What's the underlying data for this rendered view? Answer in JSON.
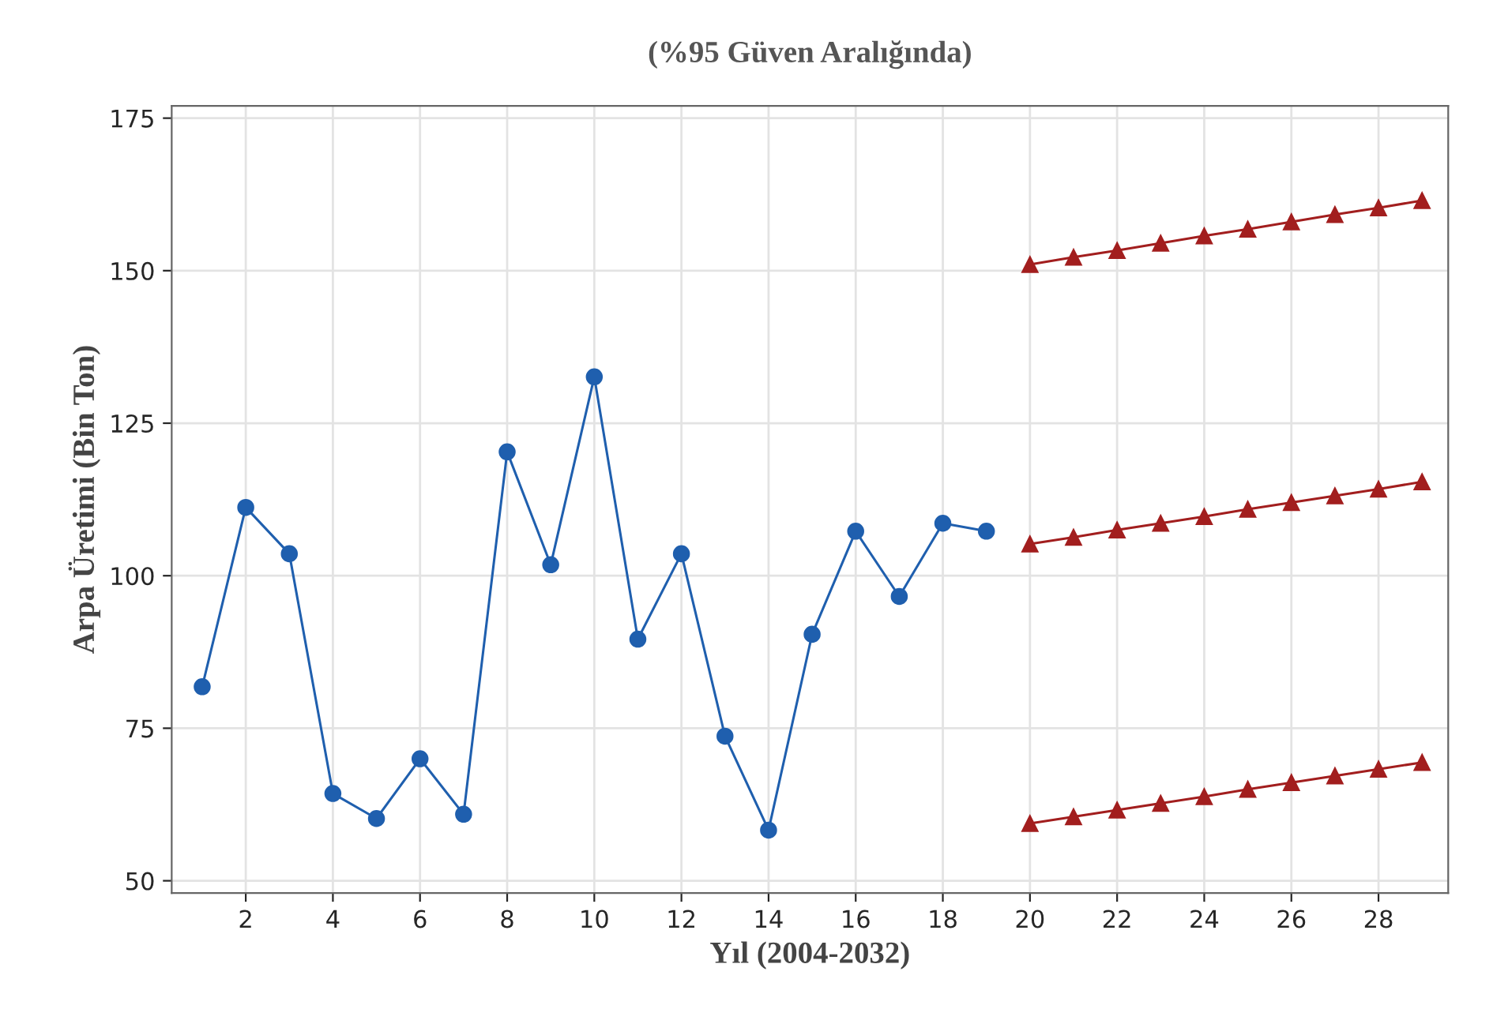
{
  "chart_data": {
    "type": "line",
    "title": "(%95 Güven Aralığında)",
    "xlabel": "Yıl (2004-2032)",
    "ylabel": "Arpa Üretimi (Bin Ton)",
    "xlim": [
      0.3,
      29.6
    ],
    "ylim": [
      48,
      177
    ],
    "xticks": [
      2,
      4,
      6,
      8,
      10,
      12,
      14,
      16,
      18,
      20,
      22,
      24,
      26,
      28
    ],
    "yticks": [
      50,
      75,
      100,
      125,
      150,
      175
    ],
    "grid": true,
    "legend": false,
    "line_style": "solid",
    "series": [
      {
        "color": "#1f5fae",
        "marker": "circle",
        "x": [
          1,
          2,
          3,
          4,
          5,
          6,
          7,
          8,
          9,
          10,
          11,
          12,
          13,
          14,
          15,
          16,
          17,
          18,
          19
        ],
        "values": [
          81.8,
          111.2,
          103.6,
          64.3,
          60.2,
          70.0,
          60.9,
          120.3,
          101.8,
          132.6,
          89.6,
          103.6,
          73.7,
          58.3,
          90.4,
          107.3,
          96.6,
          108.6,
          107.3
        ]
      },
      {
        "color": "#a21e1e",
        "marker": "triangle",
        "x": [
          20,
          21,
          22,
          23,
          24,
          25,
          26,
          27,
          28,
          29
        ],
        "values": [
          151.0,
          152.2,
          153.3,
          154.5,
          155.7,
          156.8,
          158.0,
          159.2,
          160.3,
          161.5
        ]
      },
      {
        "color": "#a21e1e",
        "marker": "triangle",
        "x": [
          20,
          21,
          22,
          23,
          24,
          25,
          26,
          27,
          28,
          29
        ],
        "values": [
          105.2,
          106.3,
          107.5,
          108.6,
          109.7,
          110.9,
          112.0,
          113.1,
          114.2,
          115.4
        ]
      },
      {
        "color": "#a21e1e",
        "marker": "triangle",
        "x": [
          20,
          21,
          22,
          23,
          24,
          25,
          26,
          27,
          28,
          29
        ],
        "values": [
          59.4,
          60.5,
          61.6,
          62.7,
          63.8,
          65.0,
          66.1,
          67.2,
          68.3,
          69.4
        ]
      }
    ]
  }
}
